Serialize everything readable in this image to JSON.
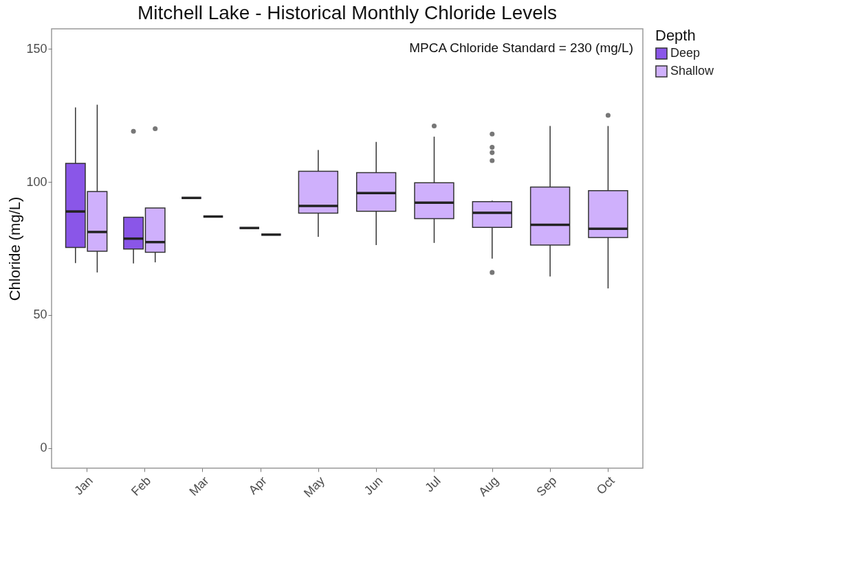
{
  "chart_data": {
    "type": "box",
    "title": "Mitchell Lake - Historical Monthly Chloride Levels",
    "ylabel": "Chloride (mg/L)",
    "legend_title": "Depth",
    "legend": "right",
    "categories": [
      "Jan",
      "Feb",
      "Mar",
      "Apr",
      "May",
      "Jun",
      "Jul",
      "Aug",
      "Sep",
      "Oct"
    ],
    "ylim": [
      -7.5,
      157.5
    ],
    "yticks": [
      0,
      50,
      100,
      150
    ],
    "annotations": [
      "MPCA Chloride Standard = 230 (mg/L)"
    ],
    "series": [
      {
        "name": "Deep",
        "color": "#8a56e8",
        "boxes": [
          {
            "low": 69.5,
            "q1": 75.4,
            "median": 88.9,
            "q3": 107,
            "high": 128
          },
          {
            "low": 69.4,
            "q1": 74.8,
            "median": 78.7,
            "q3": 86.7,
            "high": 86.7,
            "outliers": [
              119
            ]
          },
          {
            "low": 94,
            "q1": 94,
            "median": 94,
            "q3": 94,
            "high": 94
          },
          {
            "low": 82.7,
            "q1": 82.7,
            "median": 82.7,
            "q3": 82.7,
            "high": 82.7
          },
          null,
          null,
          null,
          null,
          null,
          null
        ]
      },
      {
        "name": "Shallow",
        "color": "#cfb0fc",
        "boxes": [
          {
            "low": 66,
            "q1": 74,
            "median": 81.2,
            "q3": 96.4,
            "high": 129
          },
          {
            "low": 69.8,
            "q1": 73.6,
            "median": 77.4,
            "q3": 90.2,
            "high": 90.2,
            "outliers": [
              120
            ]
          },
          {
            "low": 87,
            "q1": 87,
            "median": 87,
            "q3": 87,
            "high": 87
          },
          {
            "low": 80.2,
            "q1": 80.2,
            "median": 80.2,
            "q3": 80.2,
            "high": 80.2
          },
          {
            "low": 79.4,
            "q1": 88.3,
            "median": 91,
            "q3": 104,
            "high": 112
          },
          {
            "low": 76.3,
            "q1": 89,
            "median": 95.8,
            "q3": 103.5,
            "high": 115
          },
          {
            "low": 77.1,
            "q1": 86.2,
            "median": 92.2,
            "q3": 99.7,
            "high": 117,
            "outliers": [
              121
            ]
          },
          {
            "low": 71.2,
            "q1": 82.9,
            "median": 88.4,
            "q3": 92.6,
            "high": 93,
            "outliers": [
              118,
              113,
              111,
              108,
              66
            ]
          },
          {
            "low": 64.5,
            "q1": 76.3,
            "median": 83.9,
            "q3": 98.1,
            "high": 121
          },
          {
            "low": 60,
            "q1": 79.1,
            "median": 82.4,
            "q3": 96.7,
            "high": 121,
            "outliers": [
              125
            ]
          }
        ]
      }
    ]
  }
}
